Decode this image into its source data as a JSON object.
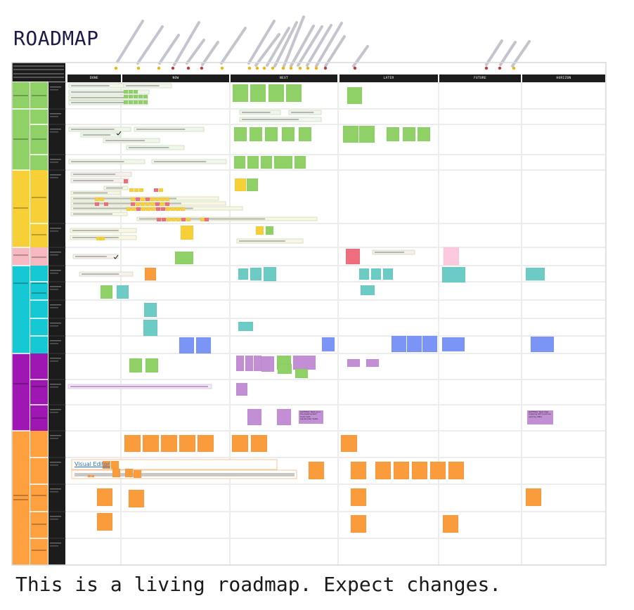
{
  "title": "ROADMAP",
  "footer": "This is a living roadmap. Expect changes.",
  "columns": [
    {
      "label": "DONE"
    },
    {
      "label": "NOW"
    },
    {
      "label": "NEXT"
    },
    {
      "label": "LATER"
    },
    {
      "label": "FUTURE"
    },
    {
      "label": "HORIZON"
    }
  ],
  "link": {
    "label": "Visual Editor"
  },
  "notes": {
    "next_card": "GATEWAY: Next up in the pipeline item lorem text placeholder detail",
    "horizon_card": "GATEWAY: Next step: mapping API (could be used by CMS)"
  },
  "colors": {
    "green": "#8fd167",
    "yellow": "#f7d038",
    "pink": "#f6b9c1",
    "teal": "#16c8d4",
    "teal_card": "#6ccbc4",
    "purple": "#9e17b3",
    "purple_card": "#c28ed4",
    "orange": "#ffa040",
    "orange_card": "#fb9c3c",
    "blue_card": "#7b95f6",
    "red_card": "#ee6e7e",
    "dark": "#1c1c1c"
  },
  "avatars": [
    "star",
    "star",
    "star",
    "rocket",
    "rocket",
    "rocket",
    "star",
    "star",
    "star",
    "star",
    "star",
    "star",
    "star",
    "star",
    "star",
    "star",
    "rocket",
    "rocket",
    "rocket",
    "rocket"
  ]
}
